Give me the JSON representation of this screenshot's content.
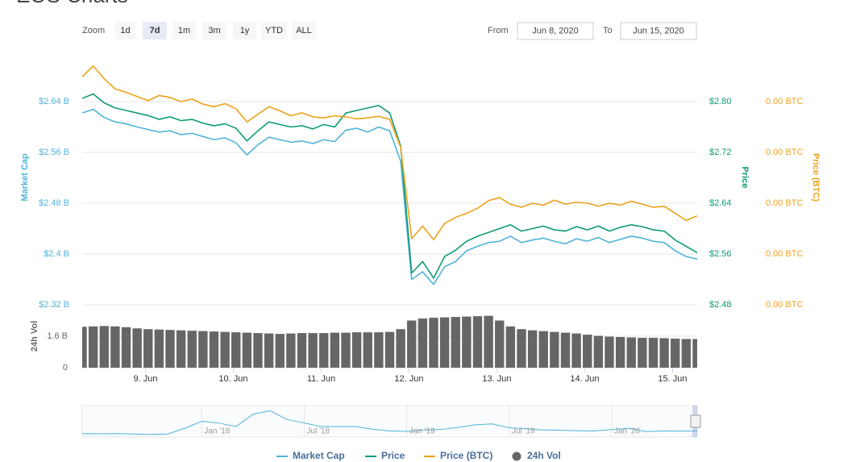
{
  "page_title": "EOS Charts",
  "toolbar": {
    "zoom_label": "Zoom",
    "buttons": [
      "1d",
      "7d",
      "1m",
      "3m",
      "1y",
      "YTD",
      "ALL"
    ],
    "selected": "7d",
    "from_label": "From",
    "from": "Jun 8, 2020",
    "to_label": "To",
    "to": "Jun 15, 2020"
  },
  "chart_data": {
    "type": "line",
    "x": [
      8.28,
      8.405,
      8.53,
      8.655,
      8.78,
      8.905,
      9.03,
      9.155,
      9.28,
      9.405,
      9.53,
      9.655,
      9.78,
      9.905,
      10.03,
      10.155,
      10.28,
      10.405,
      10.53,
      10.655,
      10.78,
      10.905,
      11.03,
      11.155,
      11.28,
      11.405,
      11.53,
      11.655,
      11.78,
      11.905,
      12.03,
      12.155,
      12.28,
      12.405,
      12.53,
      12.655,
      12.78,
      12.905,
      13.03,
      13.155,
      13.28,
      13.405,
      13.53,
      13.655,
      13.78,
      13.905,
      14.03,
      14.155,
      14.28,
      14.405,
      14.53,
      14.655,
      14.78,
      14.905,
      15.03,
      15.155,
      15.28
    ],
    "xlim": [
      8.28,
      15.28
    ],
    "xticks": [
      {
        "value": 9,
        "label": "9. Jun"
      },
      {
        "value": 10,
        "label": "10. Jun"
      },
      {
        "value": 11,
        "label": "11. Jun"
      },
      {
        "value": 12,
        "label": "12. Jun"
      },
      {
        "value": 13,
        "label": "13. Jun"
      },
      {
        "value": 14,
        "label": "14. Jun"
      },
      {
        "value": 15,
        "label": "15. Jun"
      }
    ],
    "ylabel": "Market Cap",
    "ylim": [
      2.32,
      2.72
    ],
    "yticks": [
      {
        "value": 2.32,
        "label": "$2.32 B"
      },
      {
        "value": 2.4,
        "label": "$2.4 B"
      },
      {
        "value": 2.48,
        "label": "$2.48 B"
      },
      {
        "value": 2.56,
        "label": "$2.56 B"
      },
      {
        "value": 2.64,
        "label": "$2.64 B"
      }
    ],
    "y2label": "Price",
    "y2lim": [
      2.48,
      2.88
    ],
    "y2ticks": [
      {
        "value": 2.48,
        "label": "$2.48"
      },
      {
        "value": 2.56,
        "label": "$2.56"
      },
      {
        "value": 2.64,
        "label": "$2.64"
      },
      {
        "value": 2.72,
        "label": "$2.72"
      },
      {
        "value": 2.8,
        "label": "$2.80"
      }
    ],
    "y3label": "Price (BTC)",
    "y3lim": [
      0.00024,
      0.00029
    ],
    "y3ticks": [
      {
        "value": 0.00024,
        "label": "0.00 BTC"
      },
      {
        "value": 0.00025,
        "label": "0.00 BTC"
      },
      {
        "value": 0.00026,
        "label": "0.00 BTC"
      },
      {
        "value": 0.00027,
        "label": "0.00 BTC"
      },
      {
        "value": 0.00028,
        "label": "0.00 BTC"
      }
    ],
    "vol_label": "24h Vol",
    "vol_lim": [
      0,
      3.2
    ],
    "vol_ticks": [
      0,
      {
        "value": 1.6,
        "label": "1.6 B"
      }
    ],
    "grid": true,
    "series": [
      {
        "name": "Market Cap",
        "color": "#4fb3d9",
        "values": [
          2.622,
          2.628,
          2.615,
          2.608,
          2.605,
          2.6,
          2.596,
          2.592,
          2.594,
          2.588,
          2.59,
          2.585,
          2.58,
          2.583,
          2.575,
          2.556,
          2.572,
          2.584,
          2.58,
          2.576,
          2.578,
          2.574,
          2.58,
          2.577,
          2.595,
          2.598,
          2.592,
          2.6,
          2.594,
          2.546,
          2.36,
          2.372,
          2.352,
          2.38,
          2.388,
          2.405,
          2.412,
          2.418,
          2.42,
          2.428,
          2.418,
          2.422,
          2.425,
          2.42,
          2.416,
          2.424,
          2.42,
          2.426,
          2.418,
          2.423,
          2.428,
          2.425,
          2.42,
          2.418,
          2.405,
          2.396,
          2.392
        ]
      },
      {
        "name": "Price",
        "color": "#0e9b74",
        "axis": "y2",
        "values": [
          2.805,
          2.812,
          2.798,
          2.79,
          2.786,
          2.782,
          2.778,
          2.772,
          2.776,
          2.77,
          2.772,
          2.766,
          2.762,
          2.765,
          2.758,
          2.738,
          2.754,
          2.768,
          2.764,
          2.76,
          2.762,
          2.757,
          2.764,
          2.76,
          2.782,
          2.786,
          2.79,
          2.794,
          2.782,
          2.73,
          2.53,
          2.548,
          2.522,
          2.556,
          2.566,
          2.58,
          2.588,
          2.594,
          2.6,
          2.606,
          2.596,
          2.6,
          2.604,
          2.598,
          2.596,
          2.603,
          2.598,
          2.604,
          2.596,
          2.602,
          2.606,
          2.603,
          2.598,
          2.596,
          2.582,
          2.572,
          2.562
        ]
      },
      {
        "name": "Price (BTC)",
        "color": "#eda21a",
        "axis": "y3",
        "values": [
          0.0002849,
          0.000287,
          0.0002845,
          0.0002825,
          0.0002818,
          0.000281,
          0.0002802,
          0.0002812,
          0.0002808,
          0.00028,
          0.0002805,
          0.0002795,
          0.000279,
          0.0002796,
          0.0002786,
          0.000276,
          0.0002775,
          0.000279,
          0.0002782,
          0.0002772,
          0.0002778,
          0.000277,
          0.0002768,
          0.0002772,
          0.000277,
          0.0002766,
          0.0002768,
          0.0002771,
          0.0002765,
          0.000271,
          0.000253,
          0.0002555,
          0.0002528,
          0.000256,
          0.0002572,
          0.000258,
          0.000259,
          0.0002605,
          0.0002611,
          0.0002598,
          0.0002592,
          0.00026,
          0.0002596,
          0.0002606,
          0.0002598,
          0.0002602,
          0.00026,
          0.0002594,
          0.00026,
          0.0002596,
          0.0002604,
          0.0002598,
          0.0002592,
          0.0002594,
          0.000258,
          0.0002566,
          0.0002575
        ]
      },
      {
        "name": "24h Vol",
        "color": "#666666",
        "type": "column",
        "axis": "vol",
        "values": [
          2.08,
          2.1,
          2.12,
          2.1,
          2.06,
          2.0,
          1.96,
          1.94,
          1.92,
          1.9,
          1.88,
          1.86,
          1.84,
          1.82,
          1.8,
          1.78,
          1.76,
          1.74,
          1.72,
          1.74,
          1.76,
          1.76,
          1.76,
          1.78,
          1.78,
          1.8,
          1.8,
          1.8,
          1.82,
          1.96,
          2.4,
          2.5,
          2.54,
          2.56,
          2.58,
          2.6,
          2.62,
          2.64,
          2.4,
          2.1,
          1.96,
          1.9,
          1.86,
          1.82,
          1.78,
          1.74,
          1.68,
          1.62,
          1.58,
          1.56,
          1.54,
          1.52,
          1.52,
          1.5,
          1.48,
          1.46,
          1.46
        ]
      }
    ]
  },
  "navigator": {
    "type": "line",
    "color": "#4fb3d9",
    "x": [
      "2017-06",
      "2017-07",
      "2017-08",
      "2017-09",
      "2017-10",
      "2017-11",
      "2017-12",
      "2018-01",
      "2018-02",
      "2018-03",
      "2018-04",
      "2018-05",
      "2018-06",
      "2018-07",
      "2018-08",
      "2018-09",
      "2018-10",
      "2018-11",
      "2018-12",
      "2019-01",
      "2019-02",
      "2019-03",
      "2019-04",
      "2019-05",
      "2019-06",
      "2019-07",
      "2019-08",
      "2019-09",
      "2019-10",
      "2019-11",
      "2019-12",
      "2020-01",
      "2020-02",
      "2020-03",
      "2020-04",
      "2020-05",
      "2020-06"
    ],
    "values": [
      1.0,
      0.9,
      1.0,
      0.8,
      0.6,
      0.8,
      4.0,
      8.0,
      7.0,
      5.0,
      12.0,
      14.0,
      9.0,
      7.0,
      5.0,
      5.0,
      5.0,
      3.5,
      2.5,
      2.3,
      3.0,
      3.4,
      4.5,
      6.0,
      6.5,
      4.3,
      3.8,
      3.1,
      2.9,
      2.6,
      2.5,
      3.3,
      4.0,
      2.2,
      2.5,
      2.4,
      2.5
    ],
    "xlim": [
      "2017-06",
      "2020-06"
    ],
    "ylim": [
      0,
      16
    ],
    "xticks": [
      {
        "value": "2018-01",
        "label": "Jan '18"
      },
      {
        "value": "2018-07",
        "label": "Jul '18"
      },
      {
        "value": "2019-01",
        "label": "Jan '19"
      },
      {
        "value": "2019-07",
        "label": "Jul '19"
      },
      {
        "value": "2020-01",
        "label": "Jan '20"
      }
    ]
  }
}
